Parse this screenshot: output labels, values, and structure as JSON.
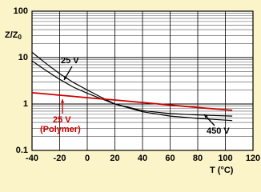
{
  "chart_data": {
    "type": "line",
    "ylabel": {
      "text": "Z/Z",
      "subscript": "0"
    },
    "xlabel": "T (°C)",
    "x": [
      -40,
      -30,
      -20,
      -10,
      0,
      10,
      20,
      40,
      60,
      80,
      105
    ],
    "series": [
      {
        "name": "25 V",
        "color": "#000000",
        "values": [
          13,
          7.5,
          4.5,
          2.9,
          2.0,
          1.4,
          1.0,
          0.72,
          0.62,
          0.58,
          0.55
        ]
      },
      {
        "name": "450 V",
        "color": "#000000",
        "values": [
          8.5,
          5.3,
          3.4,
          2.3,
          1.7,
          1.3,
          1.0,
          0.68,
          0.55,
          0.49,
          0.44
        ]
      },
      {
        "name": "25 V (Polymer)",
        "color": "#cc0000",
        "values": [
          1.75,
          1.65,
          1.55,
          1.46,
          1.37,
          1.29,
          1.22,
          1.08,
          0.95,
          0.84,
          0.73
        ]
      }
    ],
    "annotations": [
      {
        "text": "25 V",
        "color": "#000000"
      },
      {
        "text": "450 V",
        "color": "#000000"
      },
      {
        "text": "25 V",
        "color": "#cc0000"
      },
      {
        "text": "(Polymer)",
        "color": "#cc0000"
      }
    ],
    "xlim": [
      -40,
      120
    ],
    "xticks": [
      -40,
      -20,
      0,
      20,
      40,
      60,
      80,
      100,
      120
    ],
    "ylim": [
      0.1,
      100
    ],
    "yticks": [
      0.1,
      1,
      10,
      100
    ],
    "log_y": true,
    "grid": true
  }
}
